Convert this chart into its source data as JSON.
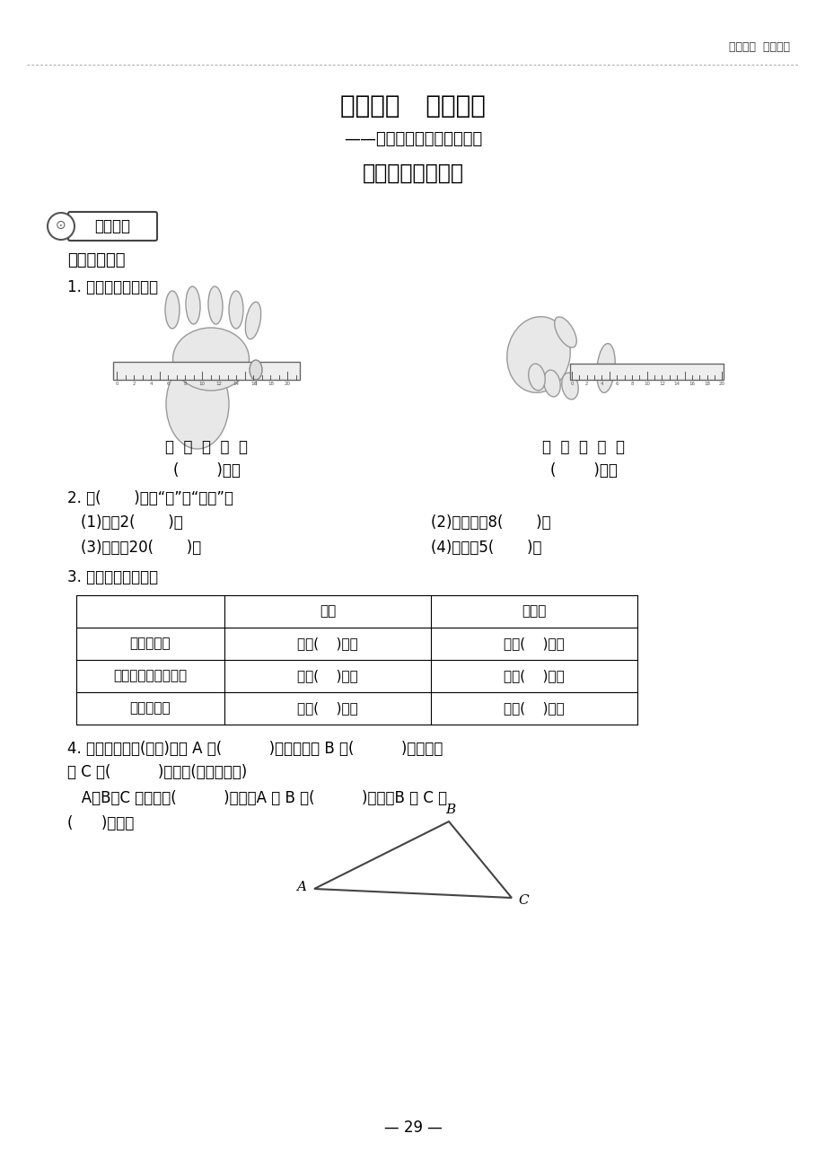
{
  "bg_color": "#ffffff",
  "header_right_text": "第二单元  甜甜的梦",
  "title_main": "第二单元   甜甜的梦",
  "title_sub": "——毫米、分米、千米的认识",
  "title_sub2": "毫米、分米的认识",
  "section_badge": "前置作业",
  "section1": "一、旧知链接",
  "q1": "1. 量一量，填一填。",
  "hand_label": "手  掌  宽  大  约",
  "finger_label": "食  指  长  大  约",
  "blank_cm1": "(        )厘米",
  "blank_cm2": "(        )厘米",
  "q2": "2. 在(       )填上“米”或“厘米”。",
  "q2_items": [
    [
      "(1)床长2(       )。",
      "(2)粉笔盒高8(       )。"
    ],
    [
      "(3)铅笔长20(       )。",
      "(4)旗杆高5(       )。"
    ]
  ],
  "q3": "3. 估一估，量一量。",
  "table_headers": [
    "",
    "估计",
    "量一量"
  ],
  "table_rows": [
    [
      "你的中指长",
      "大约(    )厘米",
      "大约(    )厘米"
    ],
    [
      "数学书封面短边的长",
      "大约(    )厘米",
      "大约(    )厘米"
    ],
    [
      "文具盒的长",
      "大约(    )厘米",
      "大约(    )厘米"
    ]
  ],
  "q4_line1": "4. 量一量，下面(如图)线段 A 长(          )厘米，线段 B 长(          )厘米，线",
  "q4_line2": "段 C 长(          )厘米。(取整厘米数)",
  "q4_line3": "   A、B、C 线段共长(          )厘米。A 比 B 短(          )厘米，B 比 C 长",
  "q4_line4": "(      )厘米。",
  "page_num": "— 29 —"
}
